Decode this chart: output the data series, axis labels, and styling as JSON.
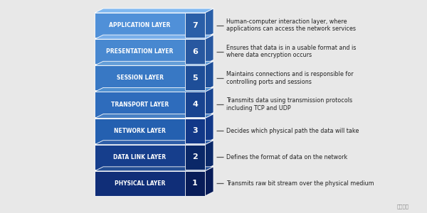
{
  "layers": [
    {
      "name": "APPLICATION LAYER",
      "number": "7",
      "description": "Human-computer interaction layer, where\napplications can access the network services",
      "face_color": "#5090d8",
      "top_color": "#80b8f0",
      "side_color": "#2a5fa8"
    },
    {
      "name": "PRESENTATION LAYER",
      "number": "6",
      "description": "Ensures that data is in a usable format and is\nwhere data encryption occurs",
      "face_color": "#4888d0",
      "top_color": "#78aeea",
      "side_color": "#2858a0"
    },
    {
      "name": "SESSION LAYER",
      "number": "5",
      "description": "Maintains connections and is responsible for\ncontrolling ports and sessions",
      "face_color": "#3878c4",
      "top_color": "#649ed8",
      "side_color": "#1e4e98"
    },
    {
      "name": "TRANSPORT LAYER",
      "number": "4",
      "description": "Transmits data using transmission protocols\nincluding TCP and UDP",
      "face_color": "#2e6cbc",
      "top_color": "#5090d0",
      "side_color": "#184490"
    },
    {
      "name": "NETWORK LAYER",
      "number": "3",
      "description": "Decides which physical path the data will take",
      "face_color": "#2460b0",
      "top_color": "#4880c4",
      "side_color": "#123888"
    },
    {
      "name": "DATA LINK LAYER",
      "number": "2",
      "description": "Defines the format of data on the network",
      "face_color": "#163e8c",
      "top_color": "#2e5ea8",
      "side_color": "#0a2868"
    },
    {
      "name": "PHYSICAL LAYER",
      "number": "1",
      "description": "Transmits raw bit stream over the physical medium",
      "face_color": "#102e78",
      "top_color": "#244e94",
      "side_color": "#081c58"
    }
  ],
  "bg_color": "#e8e8e8",
  "text_color": "#222222",
  "label_color": "#ffffff",
  "dash_color": "#555555",
  "fig_width": 6.0,
  "fig_height": 3.0,
  "dpi": 100
}
